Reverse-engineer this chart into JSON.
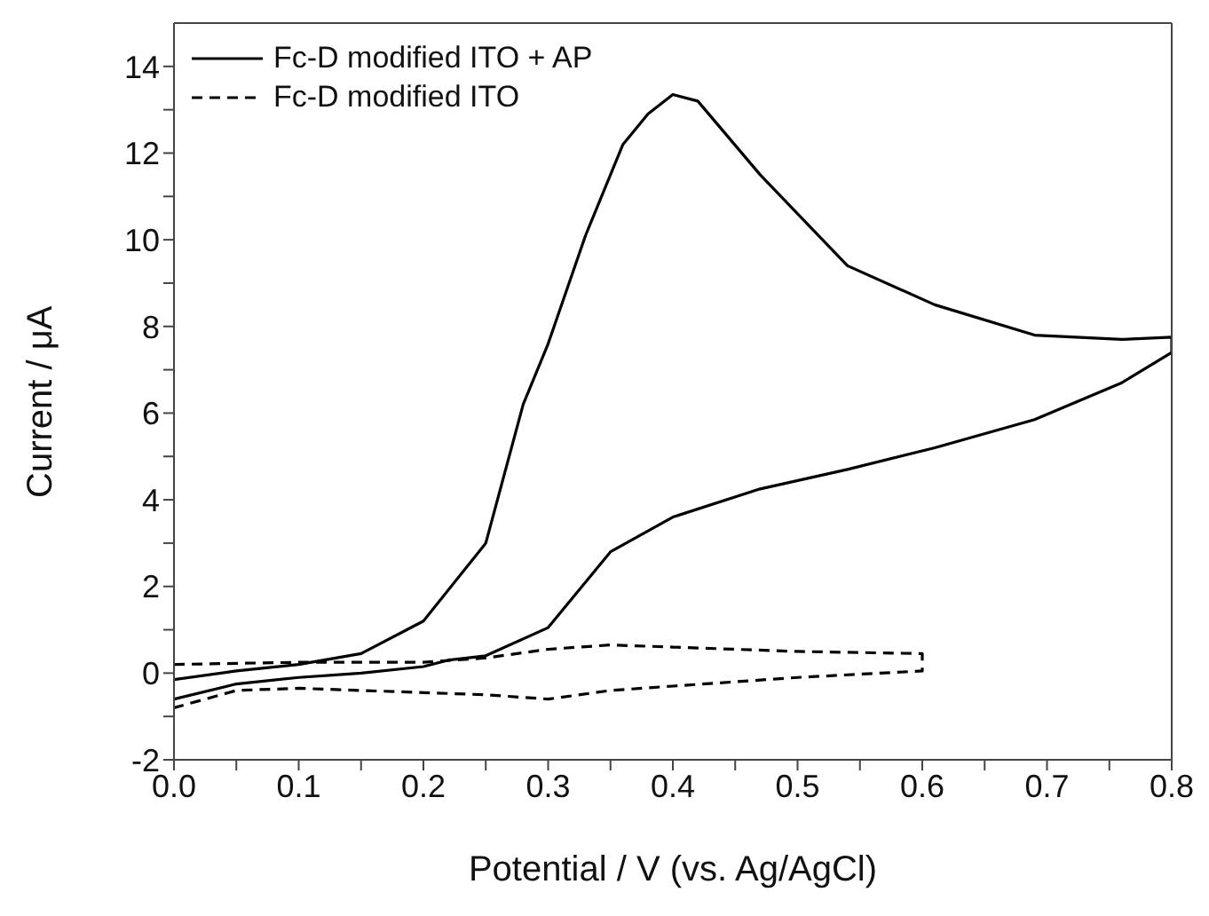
{
  "chart_data": {
    "type": "line",
    "xlabel": "Potential / V (vs. Ag/AgCl)",
    "ylabel": "Current / μA",
    "xlim": [
      0,
      0.8
    ],
    "ylim": [
      -2,
      15
    ],
    "xticks": [
      {
        "value": 0,
        "label": "0.0"
      },
      {
        "value": 0.05,
        "label": null
      },
      0.1,
      {
        "value": 0.15,
        "label": null
      },
      0.2,
      {
        "value": 0.25,
        "label": null
      },
      0.3,
      {
        "value": 0.35,
        "label": null
      },
      0.4,
      {
        "value": 0.45,
        "label": null
      },
      0.5,
      {
        "value": 0.55,
        "label": null
      },
      0.6,
      {
        "value": 0.65,
        "label": null
      },
      0.7,
      {
        "value": 0.75,
        "label": null
      },
      0.8
    ],
    "yticks": [
      -2,
      {
        "value": -1,
        "label": null
      },
      0,
      {
        "value": 1,
        "label": null
      },
      2,
      {
        "value": 3,
        "label": null
      },
      4,
      {
        "value": 5,
        "label": null
      },
      6,
      {
        "value": 7,
        "label": null
      },
      8,
      {
        "value": 9,
        "label": null
      },
      10,
      {
        "value": 11,
        "label": null
      },
      12,
      {
        "value": 13,
        "label": null
      },
      14
    ],
    "grid": false,
    "legend": "top left",
    "marker": "none",
    "series": [
      {
        "name": "Fc-D modified ITO + AP",
        "color": "#000000",
        "line_style": "solid",
        "x": [
          0,
          0.05,
          0.1,
          0.15,
          0.2,
          0.25,
          0.28,
          0.3,
          0.33,
          0.36,
          0.38,
          0.4,
          0.42,
          0.47,
          0.54,
          0.61,
          0.69,
          0.76,
          0.8,
          0.8,
          0.76,
          0.69,
          0.61,
          0.54,
          0.47,
          0.4,
          0.35,
          0.3,
          0.25,
          0.22,
          0.2,
          0.15,
          0.1,
          0.05,
          0
        ],
        "values": [
          -0.15,
          0.05,
          0.2,
          0.45,
          1.2,
          3.0,
          6.2,
          7.6,
          10.1,
          12.2,
          12.9,
          13.35,
          13.2,
          11.5,
          9.4,
          8.5,
          7.8,
          7.7,
          7.75,
          7.4,
          6.7,
          5.85,
          5.2,
          4.7,
          4.25,
          3.6,
          2.8,
          1.05,
          0.4,
          0.3,
          0.15,
          0,
          -0.1,
          -0.25,
          -0.6
        ]
      },
      {
        "name": "Fc-D modified ITO",
        "color": "#000000",
        "line_style": "dashed",
        "x": [
          0,
          0.1,
          0.2,
          0.25,
          0.3,
          0.35,
          0.4,
          0.5,
          0.6,
          0.6,
          0.5,
          0.4,
          0.35,
          0.3,
          0.25,
          0.2,
          0.1,
          0.05,
          0
        ],
        "values": [
          0.2,
          0.25,
          0.25,
          0.35,
          0.55,
          0.65,
          0.6,
          0.5,
          0.45,
          0.05,
          -0.1,
          -0.3,
          -0.4,
          -0.6,
          -0.5,
          -0.45,
          -0.35,
          -0.4,
          -0.8
        ]
      }
    ]
  }
}
